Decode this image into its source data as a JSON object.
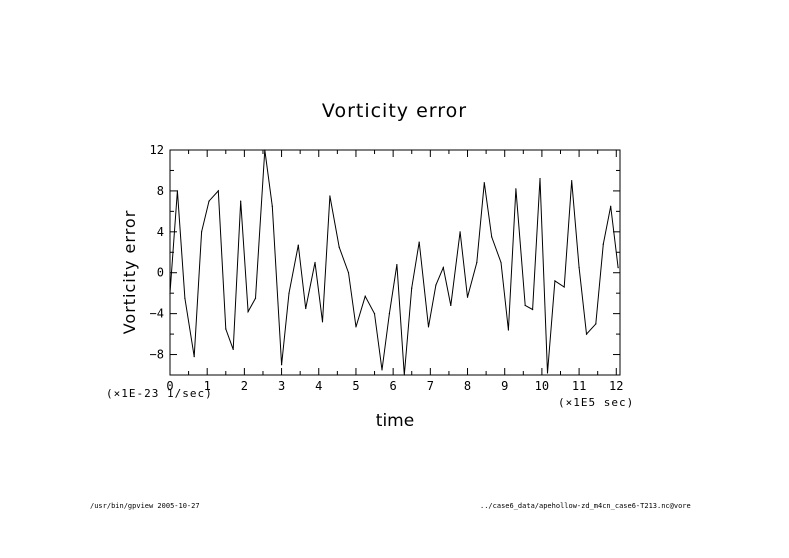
{
  "chart_data": {
    "type": "line",
    "title": "Vorticity error",
    "xlabel": "time",
    "ylabel": "Vorticity error",
    "x_scale_label": "(×1E5 sec)",
    "y_scale_label": "(×1E-23 1/sec)",
    "xlim": [
      0,
      12.1
    ],
    "ylim": [
      -10,
      12
    ],
    "x_ticks": [
      "0",
      "1",
      "2",
      "3",
      "4",
      "5",
      "6",
      "7",
      "8",
      "9",
      "10",
      "11",
      "12"
    ],
    "y_ticks": [
      "12",
      "8",
      "4",
      "0",
      "−4",
      "−8"
    ],
    "grid": false,
    "series": [
      {
        "x": [
          0,
          0.2,
          0.4,
          0.65,
          0.85,
          1.05,
          1.3,
          1.5,
          1.7,
          1.9,
          2.1,
          2.3,
          2.55,
          2.75,
          3.0,
          3.2,
          3.45,
          3.65,
          3.9,
          4.1,
          4.3,
          4.55,
          4.8,
          5.0,
          5.25,
          5.5,
          5.7,
          5.9,
          6.1,
          6.3,
          6.5,
          6.7,
          6.95,
          7.15,
          7.35,
          7.55,
          7.8,
          8.0,
          8.25,
          8.45,
          8.65,
          8.9,
          9.1,
          9.3,
          9.55,
          9.75,
          9.95,
          10.15,
          10.35,
          10.6,
          10.8,
          11.0,
          11.2,
          11.45,
          11.65,
          11.85,
          12.05
        ],
        "y": [
          -2,
          8,
          -2.5,
          -8.2,
          4,
          7,
          8,
          -5.5,
          -7.5,
          7,
          -3.8,
          -2.5,
          12,
          6.5,
          -9,
          -2,
          2.7,
          -3.5,
          1,
          -4.8,
          7.5,
          2.5,
          0,
          -5.3,
          -2.3,
          -4,
          -9.5,
          -4,
          0.8,
          -10,
          -1.5,
          3,
          -5.3,
          -1.2,
          0.5,
          -3.2,
          4,
          -2.4,
          1,
          8.8,
          3.5,
          1,
          -5.6,
          8.2,
          -3.2,
          -3.6,
          9.2,
          -9.8,
          -0.8,
          -1.4,
          9,
          0.5,
          -6,
          -5,
          2.8,
          6.5,
          0.5
        ]
      }
    ]
  },
  "footer": {
    "left": "/usr/bin/gpview   2005-10-27",
    "right": "../case6_data/apehollow-zd_m4cn_case6-T213.nc@vore"
  }
}
